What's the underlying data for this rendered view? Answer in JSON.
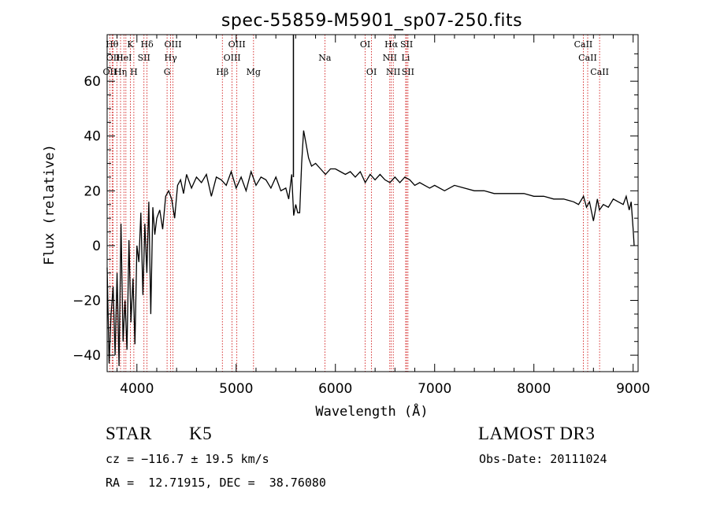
{
  "chart_data": {
    "type": "line",
    "title": "spec-55859-M5901_sp07-250.fits",
    "xlabel": "Wavelength (Å)",
    "ylabel": "Flux (relative)",
    "xlim": [
      3700,
      9050
    ],
    "ylim": [
      -46,
      77
    ],
    "xticks": [
      4000,
      5000,
      6000,
      7000,
      8000,
      9000
    ],
    "yticks": [
      -40,
      -20,
      0,
      20,
      40,
      60
    ],
    "series": [
      {
        "name": "spectrum",
        "x": [
          3700,
          3720,
          3740,
          3760,
          3780,
          3800,
          3820,
          3840,
          3860,
          3880,
          3900,
          3920,
          3940,
          3960,
          3980,
          4000,
          4020,
          4040,
          4060,
          4080,
          4100,
          4120,
          4140,
          4160,
          4180,
          4200,
          4230,
          4260,
          4290,
          4320,
          4350,
          4380,
          4410,
          4440,
          4470,
          4500,
          4550,
          4600,
          4650,
          4700,
          4750,
          4800,
          4850,
          4900,
          4950,
          5000,
          5050,
          5100,
          5150,
          5200,
          5250,
          5300,
          5350,
          5400,
          5450,
          5500,
          5530,
          5560,
          5580,
          5600,
          5620,
          5640,
          5660,
          5680,
          5700,
          5730,
          5760,
          5800,
          5850,
          5900,
          5950,
          6000,
          6050,
          6100,
          6150,
          6200,
          6250,
          6300,
          6350,
          6400,
          6450,
          6500,
          6550,
          6600,
          6650,
          6700,
          6750,
          6800,
          6850,
          6900,
          6950,
          7000,
          7100,
          7200,
          7300,
          7400,
          7500,
          7600,
          7700,
          7800,
          7900,
          8000,
          8100,
          8200,
          8300,
          8400,
          8450,
          8500,
          8530,
          8560,
          8600,
          8640,
          8660,
          8700,
          8750,
          8800,
          8850,
          8900,
          8930,
          8960,
          8980,
          9000,
          9010
        ],
        "y": [
          -8,
          -43,
          -25,
          -15,
          -40,
          -10,
          -44,
          8,
          -35,
          -20,
          -38,
          2,
          -28,
          -12,
          -36,
          0,
          -6,
          12,
          -18,
          8,
          -10,
          16,
          -25,
          14,
          4,
          10,
          13,
          6,
          18,
          20,
          17,
          10,
          22,
          24,
          19,
          26,
          21,
          25,
          23,
          26,
          18,
          25,
          24,
          22,
          27,
          21,
          25,
          20,
          27,
          22,
          25,
          24,
          21,
          25,
          20,
          21,
          17,
          26,
          11,
          15,
          12,
          12,
          30,
          42,
          38,
          32,
          29,
          30,
          28,
          26,
          28,
          28,
          27,
          26,
          27,
          25,
          27,
          23,
          26,
          24,
          26,
          24,
          23,
          25,
          23,
          25,
          24,
          22,
          23,
          22,
          21,
          22,
          20,
          22,
          21,
          20,
          20,
          19,
          19,
          19,
          19,
          18,
          18,
          17,
          17,
          16,
          15,
          18,
          14,
          16,
          9,
          17,
          13,
          15,
          14,
          17,
          16,
          15,
          18,
          13,
          16,
          6,
          0
        ]
      }
    ],
    "emission_lines": [
      {
        "wavelength": 3727,
        "label": "OII",
        "row": 2
      },
      {
        "wavelength": 3750,
        "label": "Hθ",
        "row": 0
      },
      {
        "wavelength": 3760,
        "label": "OII",
        "row": 1
      },
      {
        "wavelength": 3798,
        "label": "",
        "row": -1
      },
      {
        "wavelength": 3835,
        "label": "Hη",
        "row": 2
      },
      {
        "wavelength": 3869,
        "label": "HeI",
        "row": 1
      },
      {
        "wavelength": 3889,
        "label": "",
        "row": -1
      },
      {
        "wavelength": 3934,
        "label": "K",
        "row": 0
      },
      {
        "wavelength": 3969,
        "label": "H",
        "row": 2
      },
      {
        "wavelength": 4071,
        "label": "SII",
        "row": 1
      },
      {
        "wavelength": 4102,
        "label": "Hδ",
        "row": 0
      },
      {
        "wavelength": 4304,
        "label": "G",
        "row": 2
      },
      {
        "wavelength": 4340,
        "label": "Hγ",
        "row": 1
      },
      {
        "wavelength": 4363,
        "label": "OIII",
        "row": 0
      },
      {
        "wavelength": 4861,
        "label": "Hβ",
        "row": 2
      },
      {
        "wavelength": 4959,
        "label": "OIII",
        "row": 1
      },
      {
        "wavelength": 5007,
        "label": "OIII",
        "row": 0
      },
      {
        "wavelength": 5175,
        "label": "Mg",
        "row": 2
      },
      {
        "wavelength": 5894,
        "label": "Na",
        "row": 1
      },
      {
        "wavelength": 6300,
        "label": "OI",
        "row": 0
      },
      {
        "wavelength": 6364,
        "label": "OI",
        "row": 2
      },
      {
        "wavelength": 6548,
        "label": "NII",
        "row": 1
      },
      {
        "wavelength": 6563,
        "label": "Hα",
        "row": 0
      },
      {
        "wavelength": 6583,
        "label": "NII",
        "row": 2
      },
      {
        "wavelength": 6708,
        "label": "Li",
        "row": 1
      },
      {
        "wavelength": 6717,
        "label": "SII",
        "row": 0
      },
      {
        "wavelength": 6731,
        "label": "SII",
        "row": 2
      },
      {
        "wavelength": 8498,
        "label": "CaII",
        "row": 0
      },
      {
        "wavelength": 8542,
        "label": "CaII",
        "row": 1
      },
      {
        "wavelength": 8662,
        "label": "CaII",
        "row": 2
      }
    ],
    "colors": {
      "spectrum": "#000000",
      "lines": "#cc0000",
      "axes": "#000000"
    }
  },
  "info": {
    "class": "STAR",
    "subclass": "K5",
    "survey": "LAMOST DR3",
    "redshift": "cz = −116.7 ± 19.5 km/s",
    "obs_date": "Obs-Date: 20111024",
    "coordinates": "RA =  12.71915, DEC =  38.76080"
  }
}
